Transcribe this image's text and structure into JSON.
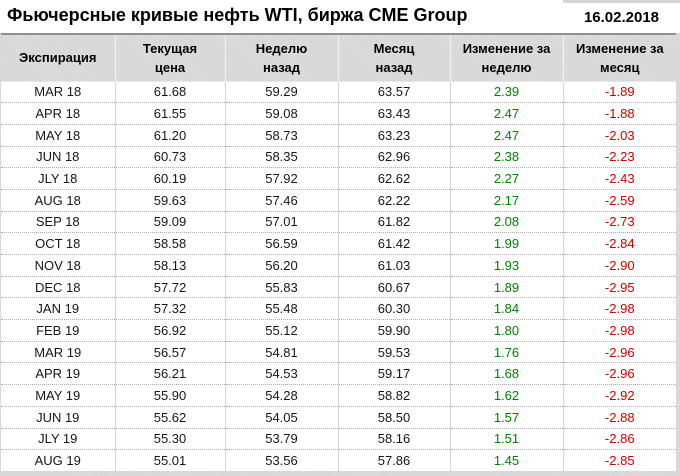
{
  "header": {
    "title": "Фьючерсные кривые нефть WTI, биржа CME Group",
    "date": "16.02.2018"
  },
  "colors": {
    "positive_change": "#008000",
    "negative_change": "#cc0000",
    "header_background": "#d9d9d9",
    "header_top_border": "#8f8f8f",
    "grid_line": "#a9a9a9"
  },
  "chart_data": {
    "type": "table",
    "title": "Фьючерсные кривые нефть WTI, биржа CME Group",
    "date": "16.02.2018",
    "columns": [
      "Экспирация",
      "Текущая\nцена",
      "Неделю\nназад",
      "Месяц\nназад",
      "Изменение за\nнеделю",
      "Изменение за\nмесяц"
    ],
    "rows": [
      [
        "MAR 18",
        "61.68",
        "59.29",
        "63.57",
        "2.39",
        "-1.89"
      ],
      [
        "APR 18",
        "61.55",
        "59.08",
        "63.43",
        "2.47",
        "-1.88"
      ],
      [
        "MAY 18",
        "61.20",
        "58.73",
        "63.23",
        "2.47",
        "-2.03"
      ],
      [
        "JUN 18",
        "60.73",
        "58.35",
        "62.96",
        "2.38",
        "-2.23"
      ],
      [
        "JLY 18",
        "60.19",
        "57.92",
        "62.62",
        "2.27",
        "-2.43"
      ],
      [
        "AUG 18",
        "59.63",
        "57.46",
        "62.22",
        "2.17",
        "-2.59"
      ],
      [
        "SEP 18",
        "59.09",
        "57.01",
        "61.82",
        "2.08",
        "-2.73"
      ],
      [
        "OCT 18",
        "58.58",
        "56.59",
        "61.42",
        "1.99",
        "-2.84"
      ],
      [
        "NOV 18",
        "58.13",
        "56.20",
        "61.03",
        "1.93",
        "-2.90"
      ],
      [
        "DEC 18",
        "57.72",
        "55.83",
        "60.67",
        "1.89",
        "-2.95"
      ],
      [
        "JAN 19",
        "57.32",
        "55.48",
        "60.30",
        "1.84",
        "-2.98"
      ],
      [
        "FEB 19",
        "56.92",
        "55.12",
        "59.90",
        "1.80",
        "-2.98"
      ],
      [
        "MAR 19",
        "56.57",
        "54.81",
        "59.53",
        "1.76",
        "-2.96"
      ],
      [
        "APR 19",
        "56.21",
        "54.53",
        "59.17",
        "1.68",
        "-2.96"
      ],
      [
        "MAY 19",
        "55.90",
        "54.28",
        "58.82",
        "1.62",
        "-2.92"
      ],
      [
        "JUN 19",
        "55.62",
        "54.05",
        "58.50",
        "1.57",
        "-2.88"
      ],
      [
        "JLY 19",
        "55.30",
        "53.79",
        "58.16",
        "1.51",
        "-2.86"
      ],
      [
        "AUG 19",
        "55.01",
        "53.56",
        "57.86",
        "1.45",
        "-2.85"
      ]
    ]
  }
}
